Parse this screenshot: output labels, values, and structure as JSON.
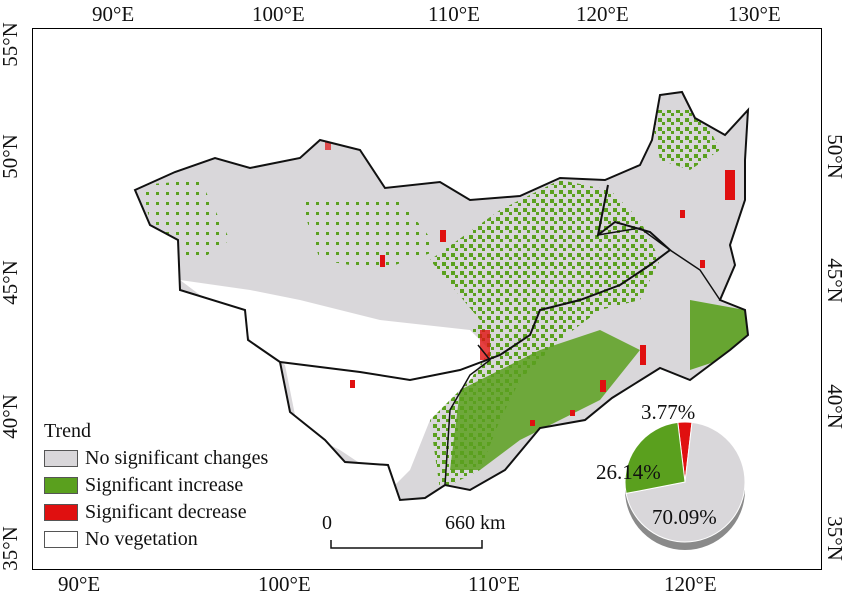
{
  "map": {
    "top_lon_labels": [
      "90°E",
      "100°E",
      "110°E",
      "120°E",
      "130°E"
    ],
    "bottom_lon_labels": [
      "90°E",
      "100°E",
      "110°E",
      "120°E"
    ],
    "left_lat_labels": [
      "55°N",
      "50°N",
      "45°N",
      "40°N",
      "35°N"
    ],
    "right_lat_labels": [
      "50°N",
      "45°N",
      "40°N",
      "35°N"
    ]
  },
  "legend": {
    "title": "Trend",
    "items": [
      {
        "label": "No significant changes",
        "color": "#d9d7da"
      },
      {
        "label": "Significant increase",
        "color": "#5aa01e"
      },
      {
        "label": "Significant decrease",
        "color": "#e01010"
      },
      {
        "label": "No vegetation",
        "color": "#ffffff"
      }
    ]
  },
  "scale_bar": {
    "start": "0",
    "end": "660 km"
  },
  "chart_data": {
    "type": "pie",
    "slices": [
      {
        "label": "70.09%",
        "value": 70.09,
        "color": "#d9d7da"
      },
      {
        "label": "26.14%",
        "value": 26.14,
        "color": "#5aa01e"
      },
      {
        "label": "3.77%",
        "value": 3.77,
        "color": "#e01010"
      }
    ]
  }
}
